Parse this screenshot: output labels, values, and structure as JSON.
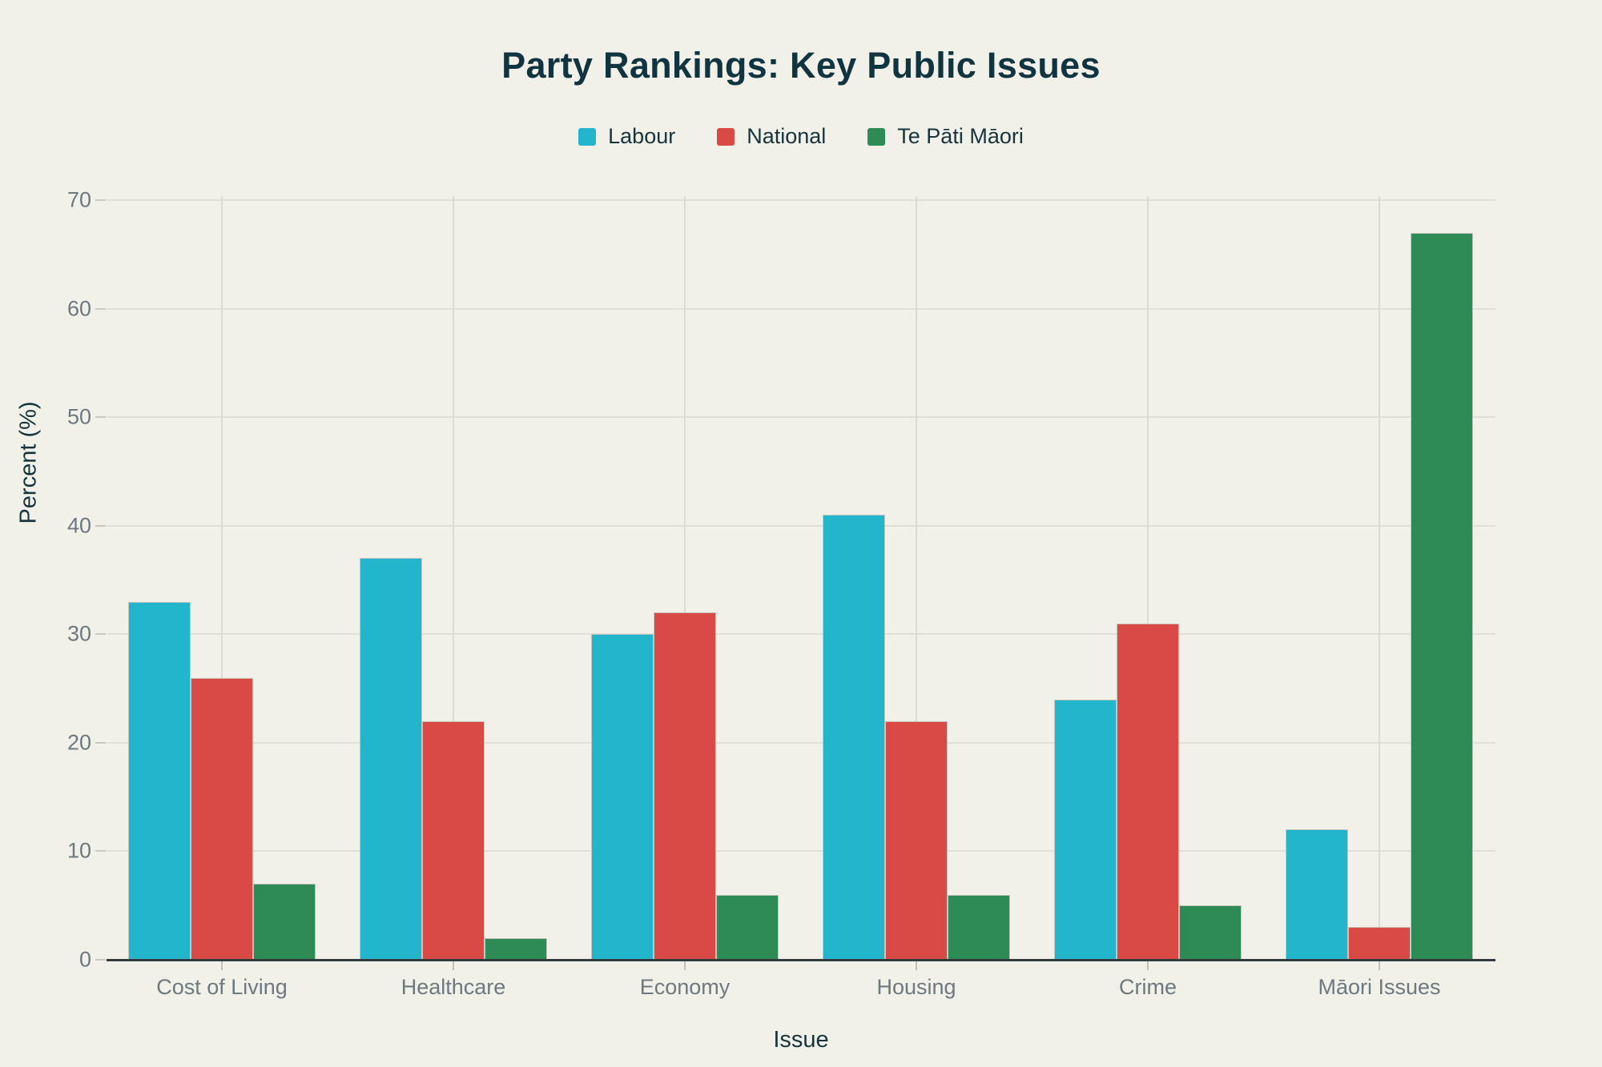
{
  "chart_data": {
    "type": "bar",
    "title": "Party Rankings: Key Public Issues",
    "xlabel": "Issue",
    "ylabel": "Percent (%)",
    "categories": [
      "Cost of Living",
      "Healthcare",
      "Economy",
      "Housing",
      "Crime",
      "Māori Issues"
    ],
    "series": [
      {
        "name": "Labour",
        "color": "#23B5CB",
        "values": [
          33,
          37,
          30,
          41,
          24,
          12
        ]
      },
      {
        "name": "National",
        "color": "#D94946",
        "values": [
          26,
          22,
          32,
          22,
          31,
          3
        ]
      },
      {
        "name": "Te Pāti Māori",
        "color": "#2E8B56",
        "values": [
          7,
          2,
          6,
          6,
          5,
          67
        ]
      }
    ],
    "ylim": [
      0,
      70
    ],
    "yticks": [
      0,
      10,
      20,
      30,
      40,
      50,
      60,
      70
    ],
    "grid": true,
    "legend_position": "top",
    "background_color": "#F1F1EA",
    "title_color": "#113540",
    "tick_label_color": "#6D7880"
  }
}
